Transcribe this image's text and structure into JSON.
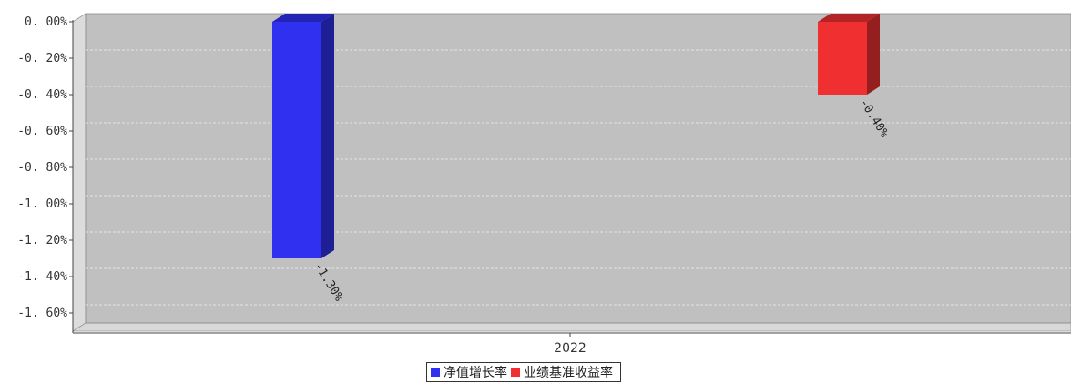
{
  "chart_data": {
    "type": "bar",
    "categories": [
      "2022"
    ],
    "series": [
      {
        "name": "净值增长率",
        "values": [
          -1.3
        ],
        "color": "#3030f0",
        "label": "-1.30%"
      },
      {
        "name": "业绩基准收益率",
        "values": [
          -0.4
        ],
        "color": "#f03030",
        "label": "-0.40%"
      }
    ],
    "ylim": [
      -1.7,
      0.0
    ],
    "yticks": [
      0.0,
      -0.2,
      -0.4,
      -0.6,
      -0.8,
      -1.0,
      -1.2,
      -1.4,
      -1.6
    ],
    "ytick_labels": [
      "0. 00%",
      "-0. 20%",
      "-0. 40%",
      "-0. 60%",
      "-0. 80%",
      "-1. 00%",
      "-1. 20%",
      "-1. 40%",
      "-1. 60%"
    ],
    "grid": true,
    "legend_position": "bottom",
    "style": "3d",
    "plot_background": "#c0c0c0"
  }
}
